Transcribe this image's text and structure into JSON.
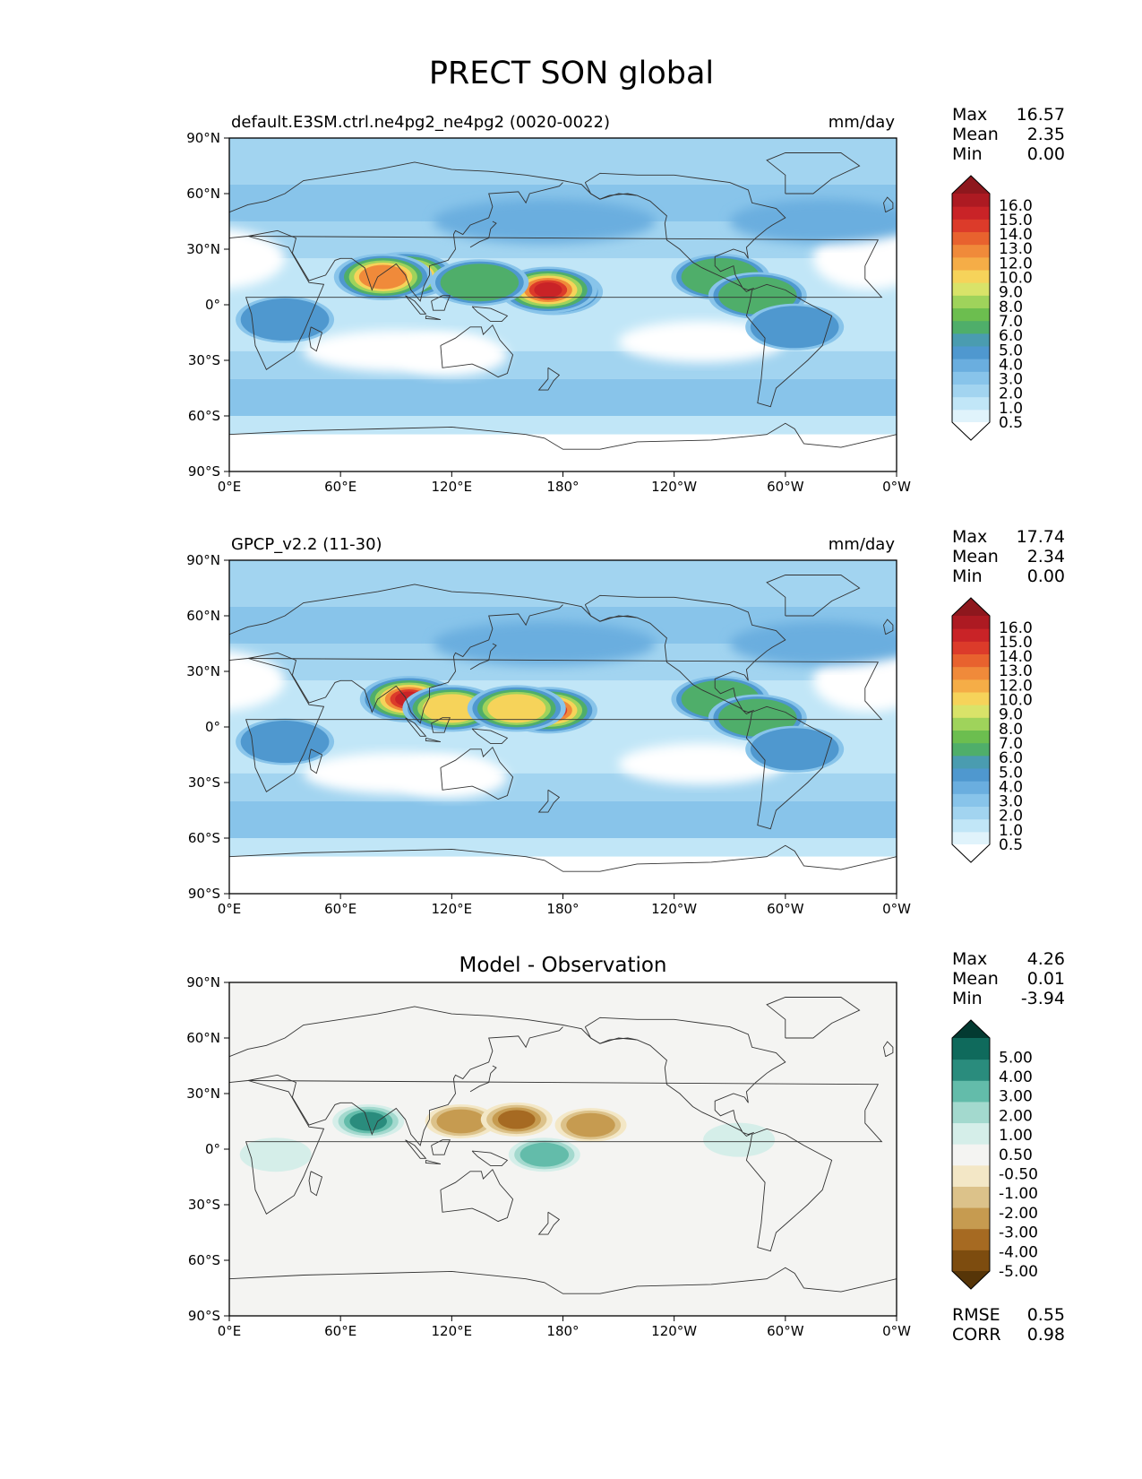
{
  "title": "PRECT SON global",
  "x_ticks": [
    "0°E",
    "60°E",
    "120°E",
    "180°",
    "120°W",
    "60°W",
    "0°W"
  ],
  "y_ticks": [
    "90°N",
    "60°N",
    "30°N",
    "0°",
    "30°S",
    "60°S",
    "90°S"
  ],
  "panels": [
    {
      "title_left": "default.E3SM.ctrl.ne4pg2_ne4pg2 (0020-0022)",
      "title_center": "",
      "title_right": "mm/day",
      "stats": [
        {
          "label": "Max",
          "value": "16.57"
        },
        {
          "label": "Mean",
          "value": "2.35"
        },
        {
          "label": "Min",
          "value": "0.00"
        }
      ],
      "footer_stats": [],
      "palette": "precip",
      "blobs": [
        {
          "lon": 95,
          "lat": 16,
          "level": 15
        },
        {
          "lon": 83,
          "lat": 15,
          "level": 13
        },
        {
          "lon": 175,
          "lat": 7,
          "level": 14
        },
        {
          "lon": 172,
          "lat": 8,
          "level": 16
        },
        {
          "lon": 135,
          "lat": 12,
          "level": 7
        },
        {
          "lon": 30,
          "lat": -8,
          "level": 6
        },
        {
          "lon": -95,
          "lat": 15,
          "level": 7
        },
        {
          "lon": -75,
          "lat": 5,
          "level": 8
        },
        {
          "lon": -55,
          "lat": -12,
          "level": 5
        }
      ]
    },
    {
      "title_left": "GPCP_v2.2 (11-30)",
      "title_center": "",
      "title_right": "mm/day",
      "stats": [
        {
          "label": "Max",
          "value": "17.74"
        },
        {
          "label": "Mean",
          "value": "2.34"
        },
        {
          "label": "Min",
          "value": "0.00"
        }
      ],
      "footer_stats": [],
      "palette": "precip",
      "blobs": [
        {
          "lon": 97,
          "lat": 15,
          "level": 16
        },
        {
          "lon": 120,
          "lat": 10,
          "level": 12
        },
        {
          "lon": 172,
          "lat": 9,
          "level": 15
        },
        {
          "lon": 155,
          "lat": 10,
          "level": 12
        },
        {
          "lon": 30,
          "lat": -8,
          "level": 6
        },
        {
          "lon": -95,
          "lat": 15,
          "level": 7
        },
        {
          "lon": -75,
          "lat": 5,
          "level": 8
        },
        {
          "lon": -55,
          "lat": -12,
          "level": 6
        }
      ]
    },
    {
      "title_left": "",
      "title_center": "Model - Observation",
      "title_right": "",
      "stats": [
        {
          "label": "Max",
          "value": "4.26"
        },
        {
          "label": "Mean",
          "value": "0.01"
        },
        {
          "label": "Min",
          "value": "-3.94"
        }
      ],
      "footer_stats": [
        {
          "label": "RMSE",
          "value": "0.55"
        },
        {
          "label": "CORR",
          "value": "0.98"
        }
      ],
      "palette": "diff",
      "blobs": [
        {
          "lon": 75,
          "lat": 15,
          "level": 3
        },
        {
          "lon": 125,
          "lat": 15,
          "level": -2
        },
        {
          "lon": 155,
          "lat": 16,
          "level": -3
        },
        {
          "lon": 195,
          "lat": 13,
          "level": -2
        },
        {
          "lon": 170,
          "lat": -3,
          "level": 2
        },
        {
          "lon": 25,
          "lat": -3,
          "level": 0.8
        },
        {
          "lon": -85,
          "lat": 5,
          "level": 0.8
        }
      ]
    }
  ],
  "colorbars": {
    "precip": {
      "tick_labels": [
        "16.0",
        "15.0",
        "14.0",
        "13.0",
        "12.0",
        "10.0",
        "9.0",
        "8.0",
        "7.0",
        "6.0",
        "5.0",
        "4.0",
        "3.0",
        "2.0",
        "1.0",
        "0.5"
      ],
      "colors_bottom_to_top": [
        "#ffffff",
        "#e0f3fb",
        "#c1e6f7",
        "#a2d4f0",
        "#88c4ea",
        "#6aaedf",
        "#4f98cf",
        "#4a9cb0",
        "#4fae6a",
        "#6cbe4f",
        "#9fd35b",
        "#d9e369",
        "#f6d35a",
        "#f5ad47",
        "#f08a3a",
        "#e8622e",
        "#dc3b2a",
        "#c92327",
        "#ad1a22",
        "#8e171d"
      ]
    },
    "diff": {
      "tick_labels": [
        "5.00",
        "4.00",
        "3.00",
        "2.00",
        "1.00",
        "0.50",
        "-0.50",
        "-1.00",
        "-2.00",
        "-3.00",
        "-4.00",
        "-5.00"
      ],
      "colors_bottom_to_top": [
        "#563508",
        "#7d4c0f",
        "#a66a22",
        "#c69b50",
        "#dcc28a",
        "#f3e7c6",
        "#f4f4f2",
        "#d5eee9",
        "#a3d9ce",
        "#63bcaa",
        "#2a8c7d",
        "#0f6a5c",
        "#033a31"
      ]
    },
    "land_bg": "#f4f4f2"
  }
}
